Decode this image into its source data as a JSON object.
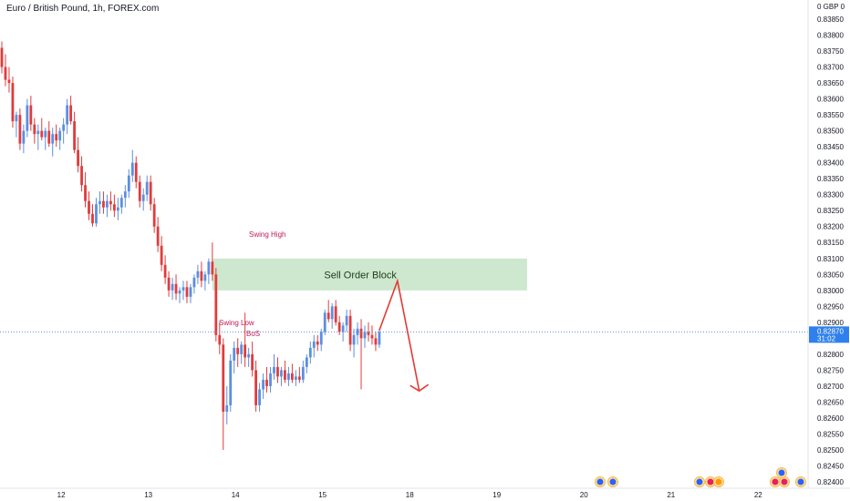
{
  "header": {
    "title": "Euro / British Pound, 1h, FOREX.com"
  },
  "chart_data": {
    "type": "candlestick",
    "title": "Euro / British Pound, 1h, FOREX.com",
    "currency_label": "0 GBP 0",
    "ylim": [
      0.8238,
      0.8391
    ],
    "y_ticks": [
      0.824,
      0.8245,
      0.825,
      0.8255,
      0.826,
      0.8265,
      0.827,
      0.8275,
      0.828,
      0.8285,
      0.829,
      0.8295,
      0.83,
      0.8305,
      0.831,
      0.8315,
      0.832,
      0.8325,
      0.833,
      0.8335,
      0.834,
      0.8345,
      0.835,
      0.8355,
      0.836,
      0.8365,
      0.837,
      0.8375,
      0.838,
      0.8385
    ],
    "y_tick_labels": [
      "0.82400",
      "0.82450",
      "0.82500",
      "0.82550",
      "0.82600",
      "0.82650",
      "0.82700",
      "0.82750",
      "0.82800",
      "0.82850",
      "0.82900",
      "0.82950",
      "0.83000",
      "0.83050",
      "0.83100",
      "0.83150",
      "0.83200",
      "0.83250",
      "0.83300",
      "0.83350",
      "0.83400",
      "0.83450",
      "0.83500",
      "0.83550",
      "0.83600",
      "0.83650",
      "0.83700",
      "0.83750",
      "0.83800",
      "0.83850"
    ],
    "x_ticks": [
      {
        "label": "12",
        "bar": 16
      },
      {
        "label": "13",
        "bar": 40
      },
      {
        "label": "14",
        "bar": 64
      },
      {
        "label": "15",
        "bar": 88
      },
      {
        "label": "18",
        "bar": 112
      },
      {
        "label": "19",
        "bar": 136
      },
      {
        "label": "20",
        "bar": 160
      },
      {
        "label": "21",
        "bar": 184
      },
      {
        "label": "22",
        "bar": 208
      }
    ],
    "last_price": {
      "value": 0.8287,
      "label": "0.82870",
      "countdown": "31:02"
    },
    "bars": [
      [
        0.8376,
        0.8378,
        0.8368,
        0.837
      ],
      [
        0.837,
        0.8374,
        0.8364,
        0.8366
      ],
      [
        0.8366,
        0.837,
        0.8362,
        0.8365
      ],
      [
        0.8365,
        0.8367,
        0.8351,
        0.8353
      ],
      [
        0.8353,
        0.8356,
        0.8348,
        0.8355
      ],
      [
        0.8355,
        0.8357,
        0.8344,
        0.8346
      ],
      [
        0.8346,
        0.8352,
        0.8343,
        0.835
      ],
      [
        0.835,
        0.836,
        0.8348,
        0.8358
      ],
      [
        0.8358,
        0.8361,
        0.835,
        0.8352
      ],
      [
        0.8352,
        0.8354,
        0.8346,
        0.8349
      ],
      [
        0.8349,
        0.8352,
        0.8344,
        0.835
      ],
      [
        0.835,
        0.8354,
        0.8347,
        0.8348
      ],
      [
        0.8348,
        0.8351,
        0.8344,
        0.835
      ],
      [
        0.835,
        0.8353,
        0.8345,
        0.8346
      ],
      [
        0.8346,
        0.8351,
        0.8342,
        0.8349
      ],
      [
        0.8349,
        0.8352,
        0.8345,
        0.8347
      ],
      [
        0.8347,
        0.8351,
        0.8344,
        0.835
      ],
      [
        0.835,
        0.8354,
        0.8346,
        0.8352
      ],
      [
        0.8352,
        0.836,
        0.8349,
        0.8358
      ],
      [
        0.8358,
        0.8361,
        0.8352,
        0.8353
      ],
      [
        0.8353,
        0.8356,
        0.8343,
        0.8344
      ],
      [
        0.8344,
        0.8348,
        0.8337,
        0.8339
      ],
      [
        0.8339,
        0.8342,
        0.8331,
        0.8333
      ],
      [
        0.8333,
        0.8337,
        0.8326,
        0.8328
      ],
      [
        0.8328,
        0.8331,
        0.8322,
        0.8324
      ],
      [
        0.8324,
        0.8327,
        0.832,
        0.8321
      ],
      [
        0.8321,
        0.8329,
        0.832,
        0.8327
      ],
      [
        0.8327,
        0.8331,
        0.8324,
        0.8328
      ],
      [
        0.8328,
        0.8331,
        0.8324,
        0.8326
      ],
      [
        0.8326,
        0.833,
        0.8323,
        0.8328
      ],
      [
        0.8328,
        0.8331,
        0.8325,
        0.8327
      ],
      [
        0.8327,
        0.833,
        0.8323,
        0.8325
      ],
      [
        0.8325,
        0.8329,
        0.8322,
        0.8326
      ],
      [
        0.8326,
        0.833,
        0.8324,
        0.8329
      ],
      [
        0.8329,
        0.8333,
        0.8326,
        0.8331
      ],
      [
        0.8331,
        0.8338,
        0.8329,
        0.8336
      ],
      [
        0.8336,
        0.8344,
        0.8334,
        0.834
      ],
      [
        0.834,
        0.8342,
        0.8332,
        0.8334
      ],
      [
        0.8334,
        0.8336,
        0.8326,
        0.8328
      ],
      [
        0.8328,
        0.8332,
        0.8325,
        0.833
      ],
      [
        0.833,
        0.8336,
        0.8328,
        0.8334
      ],
      [
        0.8334,
        0.8336,
        0.8325,
        0.8327
      ],
      [
        0.8327,
        0.8329,
        0.8318,
        0.832
      ],
      [
        0.832,
        0.8323,
        0.8312,
        0.8314
      ],
      [
        0.8314,
        0.8317,
        0.8306,
        0.8308
      ],
      [
        0.8308,
        0.8311,
        0.8302,
        0.8304
      ],
      [
        0.8304,
        0.8306,
        0.8298,
        0.83
      ],
      [
        0.83,
        0.8304,
        0.8297,
        0.8302
      ],
      [
        0.8302,
        0.8305,
        0.8297,
        0.8299
      ],
      [
        0.8299,
        0.8301,
        0.8296,
        0.83
      ],
      [
        0.83,
        0.8303,
        0.8297,
        0.8301
      ],
      [
        0.8301,
        0.8303,
        0.8296,
        0.8298
      ],
      [
        0.8298,
        0.8302,
        0.8296,
        0.8301
      ],
      [
        0.8301,
        0.8305,
        0.8299,
        0.8304
      ],
      [
        0.8304,
        0.8308,
        0.8302,
        0.8306
      ],
      [
        0.8306,
        0.8309,
        0.8301,
        0.8303
      ],
      [
        0.8303,
        0.8306,
        0.83,
        0.8305
      ],
      [
        0.8305,
        0.831,
        0.8302,
        0.8309
      ],
      [
        0.8309,
        0.8315,
        0.8303,
        0.8305
      ],
      [
        0.8305,
        0.8307,
        0.8284,
        0.8286
      ],
      [
        0.8286,
        0.829,
        0.828,
        0.8283
      ],
      [
        0.8283,
        0.8285,
        0.825,
        0.8262
      ],
      [
        0.8262,
        0.827,
        0.8258,
        0.8264
      ],
      [
        0.8264,
        0.828,
        0.8262,
        0.8278
      ],
      [
        0.8278,
        0.8284,
        0.8274,
        0.8282
      ],
      [
        0.8282,
        0.8285,
        0.8276,
        0.828
      ],
      [
        0.828,
        0.8284,
        0.8277,
        0.8283
      ],
      [
        0.8283,
        0.8293,
        0.8276,
        0.8279
      ],
      [
        0.8279,
        0.8282,
        0.8276,
        0.828
      ],
      [
        0.828,
        0.8284,
        0.8273,
        0.8275
      ],
      [
        0.8275,
        0.8278,
        0.8262,
        0.8264
      ],
      [
        0.8264,
        0.8271,
        0.8262,
        0.8269
      ],
      [
        0.8269,
        0.8274,
        0.8266,
        0.8272
      ],
      [
        0.8272,
        0.8276,
        0.8268,
        0.827
      ],
      [
        0.827,
        0.8276,
        0.8268,
        0.8274
      ],
      [
        0.8274,
        0.828,
        0.8272,
        0.8276
      ],
      [
        0.8276,
        0.8279,
        0.8271,
        0.8273
      ],
      [
        0.8273,
        0.8276,
        0.827,
        0.8275
      ],
      [
        0.8275,
        0.8278,
        0.8271,
        0.8272
      ],
      [
        0.8272,
        0.8276,
        0.827,
        0.8274
      ],
      [
        0.8274,
        0.8277,
        0.8271,
        0.8272
      ],
      [
        0.8272,
        0.8275,
        0.827,
        0.8273
      ],
      [
        0.8273,
        0.8276,
        0.8271,
        0.8272
      ],
      [
        0.8272,
        0.8278,
        0.8271,
        0.8276
      ],
      [
        0.8276,
        0.828,
        0.8274,
        0.8279
      ],
      [
        0.8279,
        0.8284,
        0.8277,
        0.8282
      ],
      [
        0.8282,
        0.8286,
        0.8279,
        0.8284
      ],
      [
        0.8284,
        0.8286,
        0.8281,
        0.8283
      ],
      [
        0.8283,
        0.8288,
        0.8281,
        0.8287
      ],
      [
        0.8287,
        0.8294,
        0.8286,
        0.8293
      ],
      [
        0.8293,
        0.8297,
        0.829,
        0.8291
      ],
      [
        0.8291,
        0.8296,
        0.8288,
        0.8295
      ],
      [
        0.8295,
        0.8297,
        0.8289,
        0.829
      ],
      [
        0.829,
        0.8292,
        0.8286,
        0.8287
      ],
      [
        0.8287,
        0.829,
        0.8284,
        0.8289
      ],
      [
        0.8289,
        0.8294,
        0.8287,
        0.8292
      ],
      [
        0.8292,
        0.8294,
        0.8281,
        0.8283
      ],
      [
        0.8283,
        0.8288,
        0.8279,
        0.8286
      ],
      [
        0.8286,
        0.829,
        0.8283,
        0.8288
      ],
      [
        0.8288,
        0.8291,
        0.8269,
        0.8285
      ],
      [
        0.8285,
        0.8289,
        0.8282,
        0.8287
      ],
      [
        0.8287,
        0.829,
        0.8284,
        0.8286
      ],
      [
        0.8286,
        0.8289,
        0.8283,
        0.8285
      ],
      [
        0.8285,
        0.8287,
        0.8281,
        0.8283
      ],
      [
        0.8283,
        0.8288,
        0.8282,
        0.8287
      ]
    ],
    "annotations": {
      "swing_high": "Swing High",
      "swing_low": "Swing Low",
      "bos": "BoS",
      "order_block": {
        "label": "Sell Order Block",
        "top": 0.831,
        "bottom": 0.83
      },
      "projection": [
        {
          "bar": 104,
          "price": 0.82875
        },
        {
          "bar": 109,
          "price": 0.8303
        },
        {
          "bar": 115,
          "price": 0.82685
        }
      ]
    }
  },
  "colors": {
    "up": "#5b8fe0",
    "down": "#e03c3c",
    "order_block_fill": "#c8e6c9",
    "arrow": "#e53935",
    "price_tag": "#2f80ed"
  }
}
